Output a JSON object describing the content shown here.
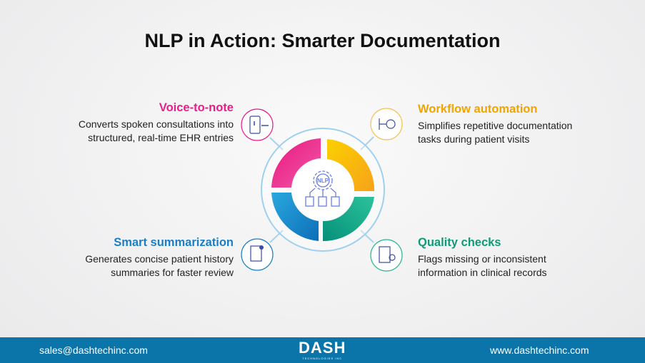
{
  "title": "NLP in Action: Smarter Documentation",
  "center_label": "NLP",
  "features": [
    {
      "title": "Voice-to-note",
      "text": [
        "Converts spoken consultations into",
        "structured, real-time EHR entries"
      ],
      "color": "#e91e8c",
      "icon": "microphone-phone-icon"
    },
    {
      "title": "Workflow automation",
      "text": [
        "Simplifies repetitive documentation",
        "tasks during patient visits"
      ],
      "color": "#f0a500",
      "icon": "workflow-gear-icon"
    },
    {
      "title": "Smart summarization",
      "text": [
        "Generates concise patient history",
        "summaries for faster review"
      ],
      "color": "#1a7fc4",
      "icon": "document-summary-icon"
    },
    {
      "title": "Quality checks",
      "text": [
        "Flags missing or inconsistent",
        "information in clinical records"
      ],
      "color": "#0f9a78",
      "icon": "checklist-magnifier-icon"
    }
  ],
  "footer": {
    "email": "sales@dashtechinc.com",
    "logo": "DASH",
    "logo_sub": "TECHNOLOGIES INC",
    "website": "www.dashtechinc.com",
    "bg": "#0b74a8"
  }
}
